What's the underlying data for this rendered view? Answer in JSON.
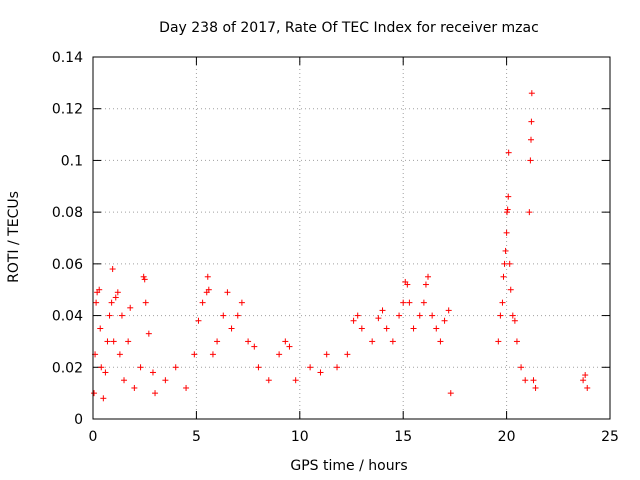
{
  "chart_data": {
    "type": "scatter",
    "title": "Day 238 of 2017, Rate Of TEC Index for receiver mzac",
    "xlabel": "GPS time / hours",
    "ylabel": "ROTI / TECUs",
    "xlim": [
      0,
      25
    ],
    "ylim": [
      0,
      0.14
    ],
    "xticks": [
      "0",
      "5",
      "10",
      "15",
      "20",
      "25"
    ],
    "yticks": [
      "0",
      "0.02",
      "0.04",
      "0.06",
      "0.08",
      "0.1",
      "0.12",
      "0.14"
    ],
    "grid": true,
    "marker": "+",
    "color": "#ff0000",
    "series": [
      {
        "name": "ROTI",
        "points": [
          [
            0.05,
            0.01
          ],
          [
            0.1,
            0.025
          ],
          [
            0.15,
            0.045
          ],
          [
            0.2,
            0.049
          ],
          [
            0.3,
            0.05
          ],
          [
            0.35,
            0.035
          ],
          [
            0.4,
            0.02
          ],
          [
            0.5,
            0.008
          ],
          [
            0.6,
            0.018
          ],
          [
            0.7,
            0.03
          ],
          [
            0.8,
            0.04
          ],
          [
            0.9,
            0.045
          ],
          [
            0.95,
            0.058
          ],
          [
            1.0,
            0.03
          ],
          [
            1.1,
            0.047
          ],
          [
            1.2,
            0.049
          ],
          [
            1.3,
            0.025
          ],
          [
            1.4,
            0.04
          ],
          [
            1.5,
            0.015
          ],
          [
            1.7,
            0.03
          ],
          [
            1.8,
            0.043
          ],
          [
            2.0,
            0.012
          ],
          [
            2.3,
            0.02
          ],
          [
            2.45,
            0.055
          ],
          [
            2.5,
            0.054
          ],
          [
            2.55,
            0.045
          ],
          [
            2.7,
            0.033
          ],
          [
            2.9,
            0.018
          ],
          [
            3.0,
            0.01
          ],
          [
            3.5,
            0.015
          ],
          [
            4.0,
            0.02
          ],
          [
            4.5,
            0.012
          ],
          [
            4.9,
            0.025
          ],
          [
            5.1,
            0.038
          ],
          [
            5.3,
            0.045
          ],
          [
            5.5,
            0.049
          ],
          [
            5.55,
            0.055
          ],
          [
            5.6,
            0.05
          ],
          [
            5.8,
            0.025
          ],
          [
            6.0,
            0.03
          ],
          [
            6.3,
            0.04
          ],
          [
            6.5,
            0.049
          ],
          [
            6.7,
            0.035
          ],
          [
            7.0,
            0.04
          ],
          [
            7.2,
            0.045
          ],
          [
            7.5,
            0.03
          ],
          [
            7.8,
            0.028
          ],
          [
            8.0,
            0.02
          ],
          [
            8.5,
            0.015
          ],
          [
            9.0,
            0.025
          ],
          [
            9.3,
            0.03
          ],
          [
            9.5,
            0.028
          ],
          [
            9.8,
            0.015
          ],
          [
            10.5,
            0.02
          ],
          [
            11.0,
            0.018
          ],
          [
            11.3,
            0.025
          ],
          [
            11.8,
            0.02
          ],
          [
            12.3,
            0.025
          ],
          [
            12.6,
            0.038
          ],
          [
            12.8,
            0.04
          ],
          [
            13.0,
            0.035
          ],
          [
            13.5,
            0.03
          ],
          [
            13.8,
            0.039
          ],
          [
            14.0,
            0.042
          ],
          [
            14.2,
            0.035
          ],
          [
            14.5,
            0.03
          ],
          [
            14.8,
            0.04
          ],
          [
            15.0,
            0.045
          ],
          [
            15.1,
            0.053
          ],
          [
            15.2,
            0.052
          ],
          [
            15.3,
            0.045
          ],
          [
            15.5,
            0.035
          ],
          [
            15.8,
            0.04
          ],
          [
            16.0,
            0.045
          ],
          [
            16.1,
            0.052
          ],
          [
            16.2,
            0.055
          ],
          [
            16.4,
            0.04
          ],
          [
            16.6,
            0.035
          ],
          [
            16.8,
            0.03
          ],
          [
            17.0,
            0.038
          ],
          [
            17.2,
            0.042
          ],
          [
            17.3,
            0.01
          ],
          [
            19.6,
            0.03
          ],
          [
            19.7,
            0.04
          ],
          [
            19.8,
            0.045
          ],
          [
            19.85,
            0.055
          ],
          [
            19.9,
            0.06
          ],
          [
            19.95,
            0.065
          ],
          [
            20.0,
            0.072
          ],
          [
            20.02,
            0.08
          ],
          [
            20.05,
            0.081
          ],
          [
            20.08,
            0.086
          ],
          [
            20.1,
            0.103
          ],
          [
            20.15,
            0.06
          ],
          [
            20.2,
            0.05
          ],
          [
            20.3,
            0.04
          ],
          [
            20.4,
            0.038
          ],
          [
            20.5,
            0.03
          ],
          [
            20.7,
            0.02
          ],
          [
            20.9,
            0.015
          ],
          [
            21.1,
            0.08
          ],
          [
            21.15,
            0.1
          ],
          [
            21.18,
            0.108
          ],
          [
            21.2,
            0.115
          ],
          [
            21.22,
            0.126
          ],
          [
            21.3,
            0.015
          ],
          [
            21.4,
            0.012
          ],
          [
            23.7,
            0.015
          ],
          [
            23.8,
            0.017
          ],
          [
            23.9,
            0.012
          ]
        ]
      }
    ]
  }
}
